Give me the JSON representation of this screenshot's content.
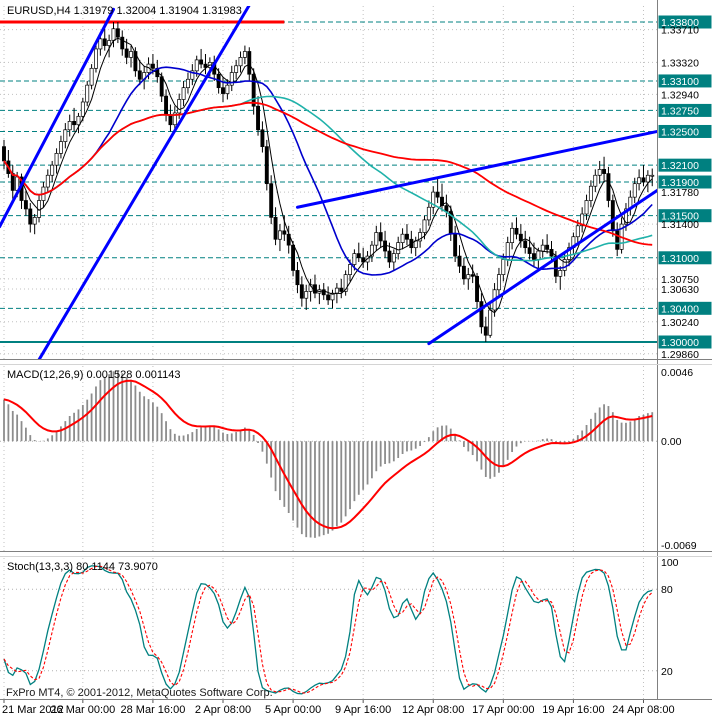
{
  "header": {
    "label": "EURUSD,H4 1.31979 1.32004 1.31904 1.31983"
  },
  "footer": {
    "copyright": "FxPro MT4, © 2001-2012, MetaQuotes Software Corp."
  },
  "colors": {
    "background": "#ffffff",
    "grid": "#c0c0c0",
    "indicator_level": "#b0b0b0",
    "level_teal": "#008080",
    "trend_blue": "#0000ff",
    "resistance_red": "#ff0000",
    "candle_up_fill": "#ffffff",
    "candle_down_fill": "#000000",
    "candle_border": "#000000",
    "macd_hist": "#8c8c8c",
    "macd_signal": "#ff0000",
    "stoch_main": "#008080",
    "stoch_signal": "#ff0000",
    "boxed_label_bg": "#008080",
    "boxed_label_text": "#ffffff",
    "axis_text": "#000000"
  },
  "time_axis": {
    "ticks": [
      [
        "21 Mar 2012",
        0
      ],
      [
        "26 Mar 00:00",
        18
      ],
      [
        "28 Mar 16:00",
        34
      ],
      [
        "2 Apr 08:00",
        50
      ],
      [
        "5 Apr 00:00",
        66
      ],
      [
        "9 Apr 16:00",
        82
      ],
      [
        "12 Apr 08:00",
        98
      ],
      [
        "17 Apr 00:00",
        114
      ],
      [
        "19 Apr 16:00",
        130
      ],
      [
        "24 Apr 08:00",
        146
      ]
    ]
  },
  "chart_data": [
    {
      "type": "candlestick",
      "symbol": "EURUSD",
      "timeframe": "H4",
      "current_ohlc": [
        1.31979,
        1.32004,
        1.31904,
        1.31983
      ],
      "ohlc_scale": 10000,
      "ohlc": [
        [
          13232,
          13240,
          13205,
          13215
        ],
        [
          13215,
          13228,
          13195,
          13200
        ],
        [
          13200,
          13210,
          13170,
          13180
        ],
        [
          13180,
          13202,
          13172,
          13196
        ],
        [
          13196,
          13200,
          13158,
          13168
        ],
        [
          13168,
          13180,
          13150,
          13158
        ],
        [
          13158,
          13165,
          13130,
          13140
        ],
        [
          13140,
          13152,
          13128,
          13148
        ],
        [
          13148,
          13175,
          13142,
          13168
        ],
        [
          13168,
          13190,
          13160,
          13184
        ],
        [
          13184,
          13205,
          13178,
          13198
        ],
        [
          13198,
          13215,
          13190,
          13210
        ],
        [
          13210,
          13230,
          13200,
          13224
        ],
        [
          13224,
          13245,
          13218,
          13238
        ],
        [
          13238,
          13260,
          13230,
          13252
        ],
        [
          13252,
          13270,
          13244,
          13262
        ],
        [
          13262,
          13278,
          13250,
          13258
        ],
        [
          13258,
          13272,
          13248,
          13268
        ],
        [
          13268,
          13290,
          13262,
          13285
        ],
        [
          13285,
          13310,
          13280,
          13305
        ],
        [
          13305,
          13330,
          13300,
          13325
        ],
        [
          13325,
          13355,
          13320,
          13348
        ],
        [
          13348,
          13368,
          13340,
          13360
        ],
        [
          13360,
          13372,
          13346,
          13352
        ],
        [
          13352,
          13365,
          13338,
          13358
        ],
        [
          13358,
          13380,
          13350,
          13372
        ],
        [
          13372,
          13380,
          13355,
          13362
        ],
        [
          13362,
          13370,
          13340,
          13348
        ],
        [
          13348,
          13360,
          13330,
          13338
        ],
        [
          13338,
          13352,
          13326,
          13345
        ],
        [
          13345,
          13350,
          13315,
          13322
        ],
        [
          13322,
          13335,
          13305,
          13312
        ],
        [
          13312,
          13328,
          13300,
          13320
        ],
        [
          13320,
          13338,
          13312,
          13330
        ],
        [
          13330,
          13342,
          13318,
          13325
        ],
        [
          13325,
          13335,
          13308,
          13315
        ],
        [
          13315,
          13320,
          13285,
          13292
        ],
        [
          13292,
          13300,
          13262,
          13270
        ],
        [
          13270,
          13282,
          13250,
          13258
        ],
        [
          13258,
          13280,
          13252,
          13272
        ],
        [
          13272,
          13295,
          13265,
          13288
        ],
        [
          13288,
          13310,
          13280,
          13302
        ],
        [
          13302,
          13320,
          13295,
          13312
        ],
        [
          13312,
          13330,
          13305,
          13322
        ],
        [
          13322,
          13340,
          13315,
          13335
        ],
        [
          13335,
          13348,
          13325,
          13330
        ],
        [
          13330,
          13342,
          13318,
          13326
        ],
        [
          13326,
          13338,
          13315,
          13332
        ],
        [
          13332,
          13340,
          13310,
          13318
        ],
        [
          13318,
          13325,
          13295,
          13302
        ],
        [
          13302,
          13315,
          13285,
          13295
        ],
        [
          13295,
          13312,
          13288,
          13305
        ],
        [
          13305,
          13328,
          13298,
          13320
        ],
        [
          13320,
          13335,
          13312,
          13328
        ],
        [
          13328,
          13345,
          13320,
          13338
        ],
        [
          13338,
          13352,
          13330,
          13345
        ],
        [
          13345,
          13350,
          13310,
          13318
        ],
        [
          13318,
          13325,
          13270,
          13280
        ],
        [
          13280,
          13292,
          13245,
          13252
        ],
        [
          13252,
          13262,
          13225,
          13232
        ],
        [
          13232,
          13240,
          13180,
          13188
        ],
        [
          13188,
          13198,
          13140,
          13148
        ],
        [
          13148,
          13160,
          13115,
          13122
        ],
        [
          13122,
          13140,
          13108,
          13132
        ],
        [
          13132,
          13150,
          13120,
          13128
        ],
        [
          13128,
          13138,
          13105,
          13115
        ],
        [
          13115,
          13120,
          13078,
          13085
        ],
        [
          13085,
          13095,
          13058,
          13068
        ],
        [
          13068,
          13078,
          13042,
          13052
        ],
        [
          13052,
          13068,
          13038,
          13060
        ],
        [
          13060,
          13075,
          13048,
          13068
        ],
        [
          13068,
          13080,
          13052,
          13058
        ],
        [
          13058,
          13068,
          13045,
          13062
        ],
        [
          13062,
          13070,
          13050,
          13056
        ],
        [
          13056,
          13066,
          13044,
          13050
        ],
        [
          13050,
          13062,
          13040,
          13058
        ],
        [
          13058,
          13070,
          13046,
          13064
        ],
        [
          13064,
          13075,
          13052,
          13060
        ],
        [
          13060,
          13085,
          13055,
          13080
        ],
        [
          13080,
          13098,
          13072,
          13092
        ],
        [
          13092,
          13110,
          13085,
          13105
        ],
        [
          13105,
          13118,
          13095,
          13100
        ],
        [
          13100,
          13112,
          13088,
          13095
        ],
        [
          13095,
          13108,
          13085,
          13102
        ],
        [
          13102,
          13120,
          13095,
          13115
        ],
        [
          13115,
          13138,
          13108,
          13130
        ],
        [
          13130,
          13142,
          13112,
          13120
        ],
        [
          13120,
          13132,
          13100,
          13108
        ],
        [
          13108,
          13118,
          13088,
          13095
        ],
        [
          13095,
          13110,
          13085,
          13105
        ],
        [
          13105,
          13125,
          13098,
          13118
        ],
        [
          13118,
          13135,
          13110,
          13128
        ],
        [
          13128,
          13140,
          13115,
          13122
        ],
        [
          13122,
          13132,
          13105,
          13112
        ],
        [
          13112,
          13125,
          13102,
          13120
        ],
        [
          13120,
          13135,
          13112,
          13130
        ],
        [
          13130,
          13150,
          13122,
          13145
        ],
        [
          13145,
          13168,
          13138,
          13160
        ],
        [
          13160,
          13185,
          13152,
          13178
        ],
        [
          13178,
          13195,
          13165,
          13172
        ],
        [
          13172,
          13188,
          13155,
          13162
        ],
        [
          13162,
          13175,
          13148,
          13155
        ],
        [
          13155,
          13162,
          13120,
          13128
        ],
        [
          13128,
          13138,
          13095,
          13102
        ],
        [
          13102,
          13115,
          13082,
          13090
        ],
        [
          13090,
          13100,
          13068,
          13075
        ],
        [
          13075,
          13088,
          13062,
          13080
        ],
        [
          13080,
          13092,
          13070,
          13078
        ],
        [
          13078,
          13082,
          13040,
          13048
        ],
        [
          13048,
          13058,
          13010,
          13018
        ],
        [
          13018,
          13030,
          13000,
          13008
        ],
        [
          13008,
          13045,
          13005,
          13038
        ],
        [
          13038,
          13070,
          13030,
          13062
        ],
        [
          13062,
          13088,
          13055,
          13080
        ],
        [
          13080,
          13105,
          13072,
          13098
        ],
        [
          13098,
          13125,
          13090,
          13118
        ],
        [
          13118,
          13142,
          13110,
          13135
        ],
        [
          13135,
          13148,
          13122,
          13128
        ],
        [
          13128,
          13140,
          13112,
          13120
        ],
        [
          13120,
          13132,
          13105,
          13112
        ],
        [
          13112,
          13125,
          13098,
          13105
        ],
        [
          13105,
          13118,
          13090,
          13098
        ],
        [
          13098,
          13112,
          13085,
          13108
        ],
        [
          13108,
          13122,
          13100,
          13115
        ],
        [
          13115,
          13128,
          13105,
          13110
        ],
        [
          13110,
          13120,
          13095,
          13102
        ],
        [
          13102,
          13108,
          13070,
          13078
        ],
        [
          13078,
          13090,
          13062,
          13085
        ],
        [
          13085,
          13105,
          13078,
          13098
        ],
        [
          13098,
          13118,
          13090,
          13112
        ],
        [
          13112,
          13130,
          13105,
          13125
        ],
        [
          13125,
          13145,
          13118,
          13138
        ],
        [
          13138,
          13160,
          13130,
          13152
        ],
        [
          13152,
          13175,
          13145,
          13168
        ],
        [
          13168,
          13192,
          13160,
          13185
        ],
        [
          13185,
          13205,
          13178,
          13198
        ],
        [
          13198,
          13215,
          13188,
          13205
        ],
        [
          13205,
          13220,
          13192,
          13200
        ],
        [
          13200,
          13208,
          13160,
          13168
        ],
        [
          13168,
          13175,
          13125,
          13132
        ],
        [
          13132,
          13142,
          13102,
          13110
        ],
        [
          13110,
          13148,
          13105,
          13140
        ],
        [
          13140,
          13165,
          13132,
          13158
        ],
        [
          13158,
          13180,
          13150,
          13172
        ],
        [
          13172,
          13195,
          13165,
          13188
        ],
        [
          13188,
          13205,
          13180,
          13195
        ],
        [
          13195,
          13210,
          13185,
          13190
        ],
        [
          13190,
          13204,
          13178,
          13198
        ],
        [
          13198,
          13206,
          13185,
          13198
        ]
      ],
      "price_axis": {
        "labels": [
          [
            "1.33800",
            1
          ],
          [
            "1.33710",
            0
          ],
          [
            "1.33320",
            0
          ],
          [
            "1.33100",
            1
          ],
          [
            "1.32940",
            0
          ],
          [
            "1.32750",
            1
          ],
          [
            "1.32500",
            1
          ],
          [
            "1.32100",
            1
          ],
          [
            "1.31900",
            1
          ],
          [
            "1.31780",
            0
          ],
          [
            "1.31500",
            1
          ],
          [
            "1.31400",
            0
          ],
          [
            "1.31000",
            1
          ],
          [
            "1.30750",
            0
          ],
          [
            "1.30630",
            0
          ],
          [
            "1.30400",
            1
          ],
          [
            "1.30240",
            0
          ],
          [
            "1.30000",
            1
          ],
          [
            "1.29860",
            0
          ]
        ]
      },
      "levels": [
        {
          "value": 1.338,
          "style": "dashed"
        },
        {
          "value": 1.331,
          "style": "dashed"
        },
        {
          "value": 1.3275,
          "style": "dashed"
        },
        {
          "value": 1.325,
          "style": "dashed"
        },
        {
          "value": 1.321,
          "style": "dashed"
        },
        {
          "value": 1.319,
          "style": "dashed"
        },
        {
          "value": 1.315,
          "style": "dashed"
        },
        {
          "value": 1.31,
          "style": "dashed"
        },
        {
          "value": 1.304,
          "style": "dashed"
        },
        {
          "value": 1.3,
          "style": "solid"
        }
      ],
      "resistance_segment": {
        "value": 1.338,
        "from_bar": 0,
        "to_bar": 64,
        "color": "#ff0000"
      },
      "trend_lines": [
        {
          "from_bar": -1,
          "from_price": 1.3137,
          "to_bar": 25,
          "to_price": 1.3395
        },
        {
          "from_bar": 8,
          "from_price": 1.2979,
          "to_bar": 56,
          "to_price": 1.34
        },
        {
          "from_bar": 67,
          "from_price": 1.316,
          "to_bar": 150,
          "to_price": 1.3251
        },
        {
          "from_bar": 97,
          "from_price": 1.2998,
          "to_bar": 150,
          "to_price": 1.3183
        }
      ],
      "moving_averages": [
        {
          "period": 5,
          "color": "#000000",
          "width": 1
        },
        {
          "period": 21,
          "color": "#0000cd",
          "width": 1.6
        },
        {
          "period": 55,
          "color": "#20b2aa",
          "width": 1.6
        },
        {
          "period": 89,
          "color": "#ff0000",
          "width": 1.8
        }
      ]
    },
    {
      "type": "macd",
      "label": "MACD(12,26,9) 0.001528 0.001143",
      "fast": 12,
      "slow": 26,
      "signal": 9,
      "current_values": [
        0.001528,
        0.001143
      ],
      "y_ticks": [
        [
          "0.0046",
          0.0046
        ],
        [
          "0.00",
          0
        ],
        [
          "-0.0069",
          -0.0069
        ]
      ]
    },
    {
      "type": "stochastic",
      "label": "Stoch(13,3,3) 80.1144 73.9070",
      "k_period": 13,
      "d_period": 3,
      "slowing": 3,
      "current_values": [
        80.1144,
        73.907
      ],
      "levels": [
        80,
        20
      ],
      "y_ticks": [
        [
          "100",
          100
        ],
        [
          "80",
          80
        ],
        [
          "20",
          20
        ]
      ]
    }
  ]
}
